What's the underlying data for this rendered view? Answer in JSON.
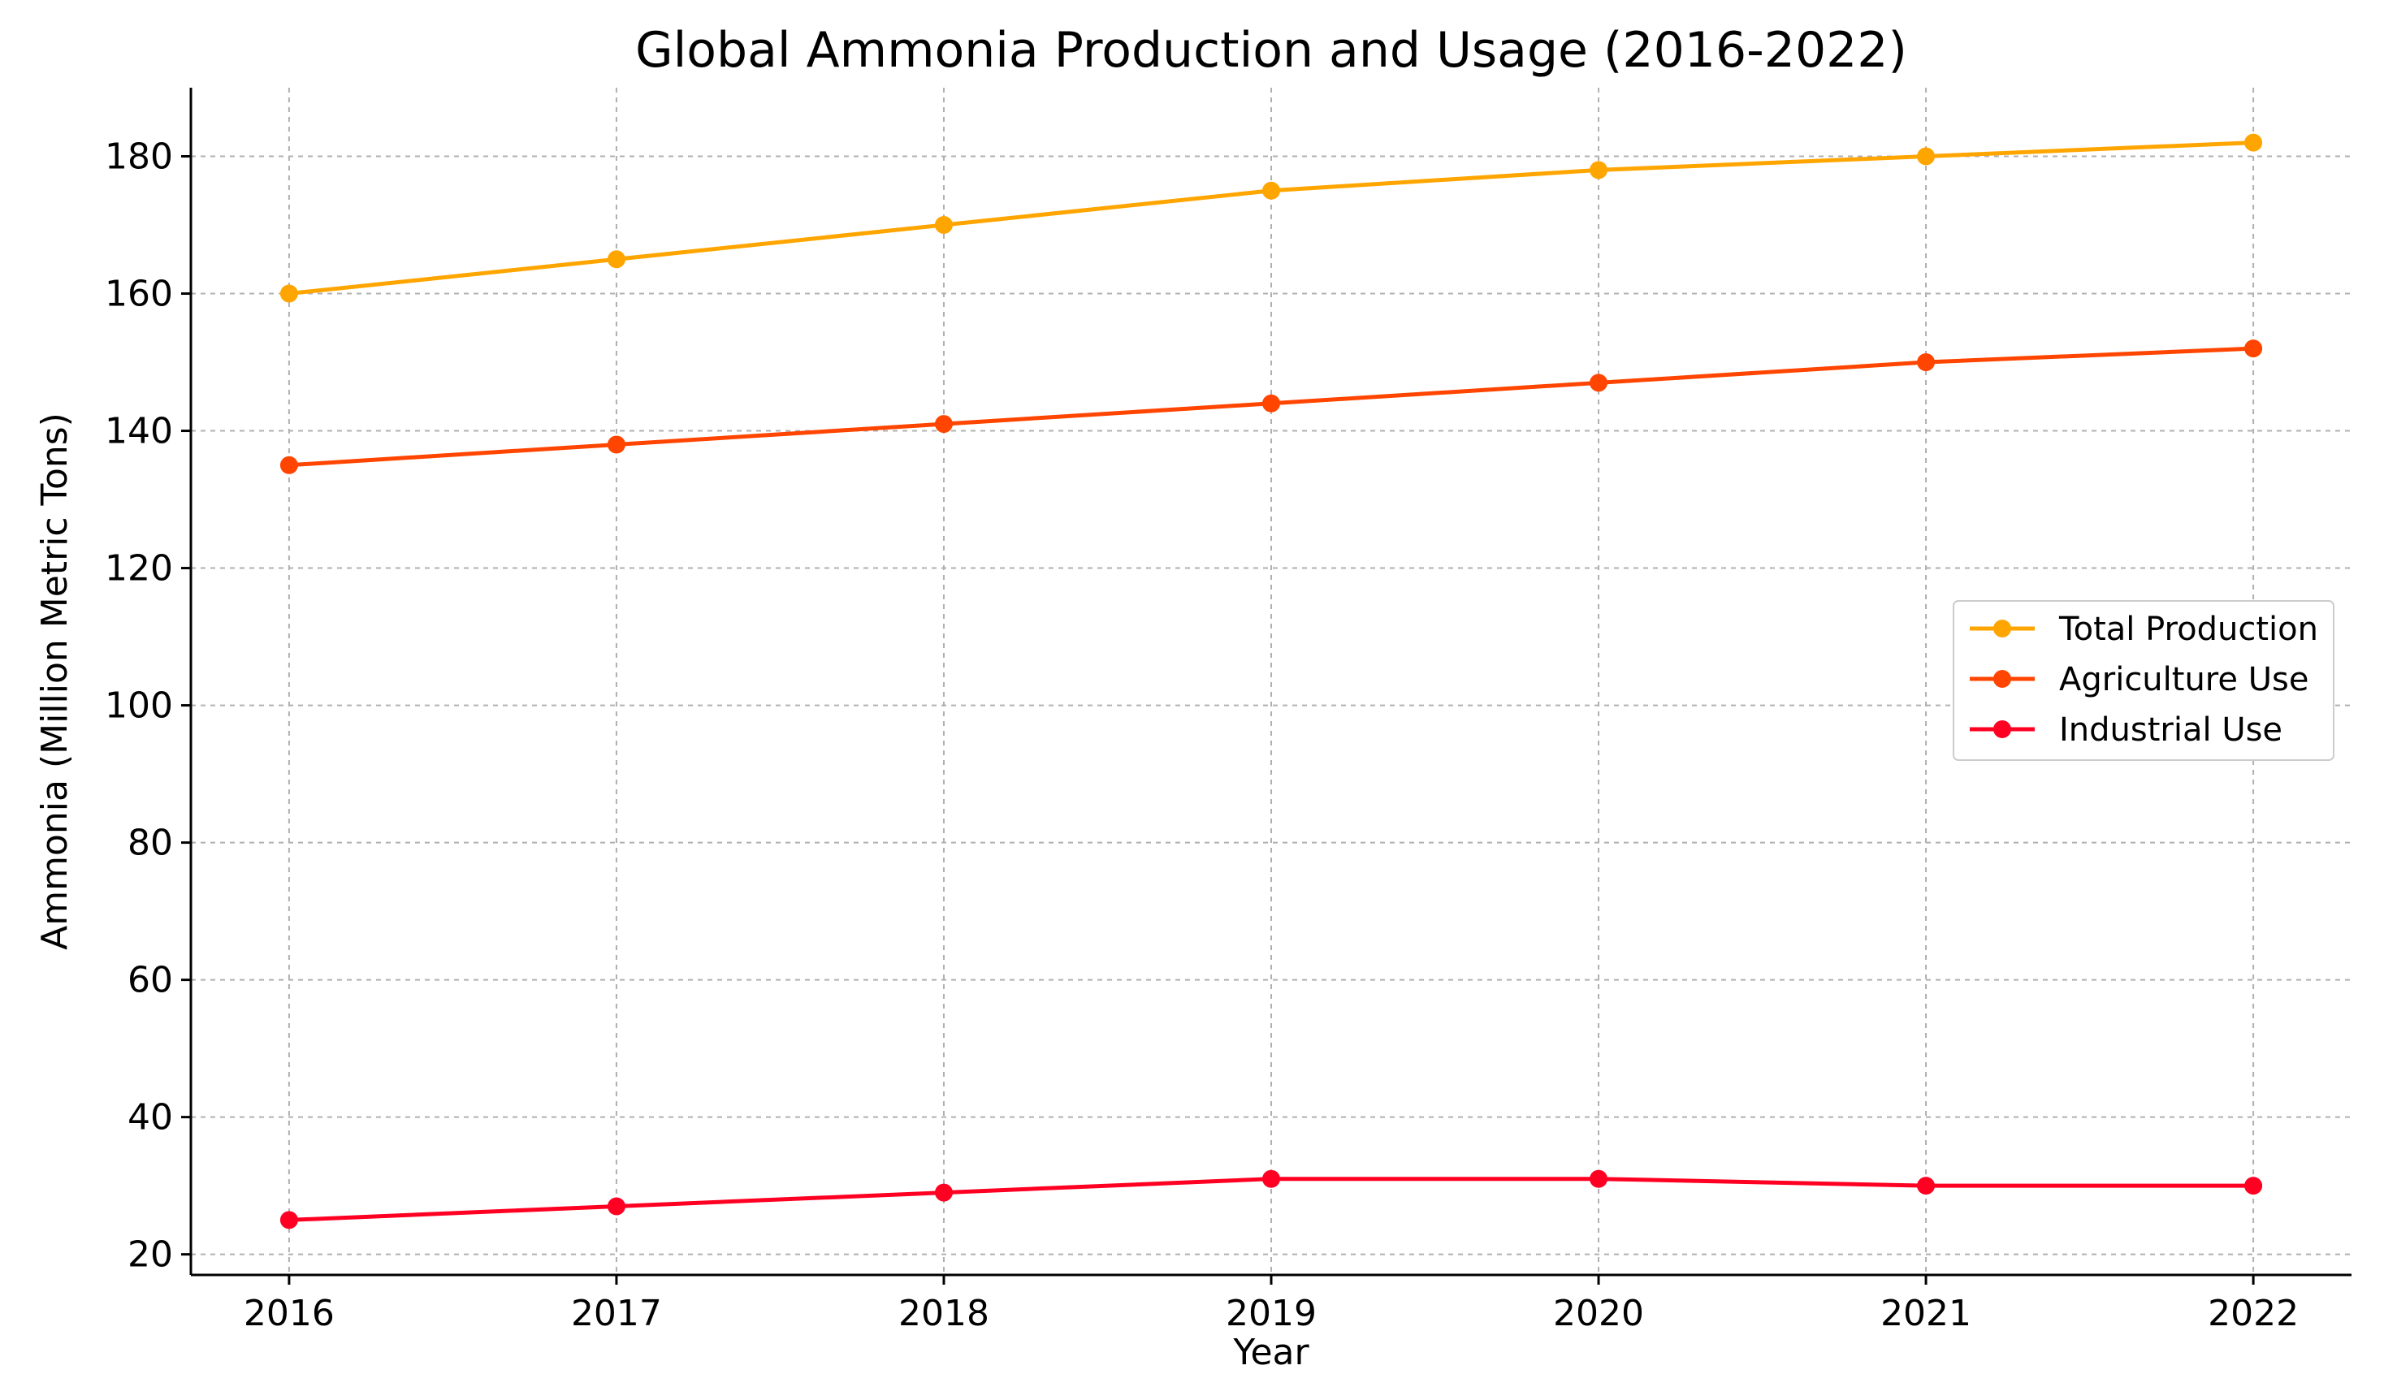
{
  "chart_data": {
    "type": "line",
    "title": "Global Ammonia Production and Usage (2016-2022)",
    "xlabel": "Year",
    "ylabel": "Ammonia (Million Metric Tons)",
    "x": [
      2016,
      2017,
      2018,
      2019,
      2020,
      2021,
      2022
    ],
    "x_tick_labels": [
      "2016",
      "2017",
      "2018",
      "2019",
      "2020",
      "2021",
      "2022"
    ],
    "xlim": [
      2015.7,
      2022.3
    ],
    "ylim": [
      17,
      190
    ],
    "y_ticks": [
      20,
      40,
      60,
      80,
      100,
      120,
      140,
      160,
      180
    ],
    "y_tick_labels": [
      "20",
      "40",
      "60",
      "80",
      "100",
      "120",
      "140",
      "160",
      "180"
    ],
    "grid": true,
    "legend_position": "center-right",
    "series": [
      {
        "name": "Total Production",
        "color": "#FFA500",
        "values": [
          160,
          165,
          170,
          175,
          178,
          180,
          182
        ]
      },
      {
        "name": "Agriculture Use",
        "color": "#FF4500",
        "values": [
          135,
          138,
          141,
          144,
          147,
          150,
          152
        ]
      },
      {
        "name": "Industrial Use",
        "color": "#FF0022",
        "values": [
          25,
          27,
          29,
          31,
          31,
          30,
          30
        ]
      }
    ]
  }
}
